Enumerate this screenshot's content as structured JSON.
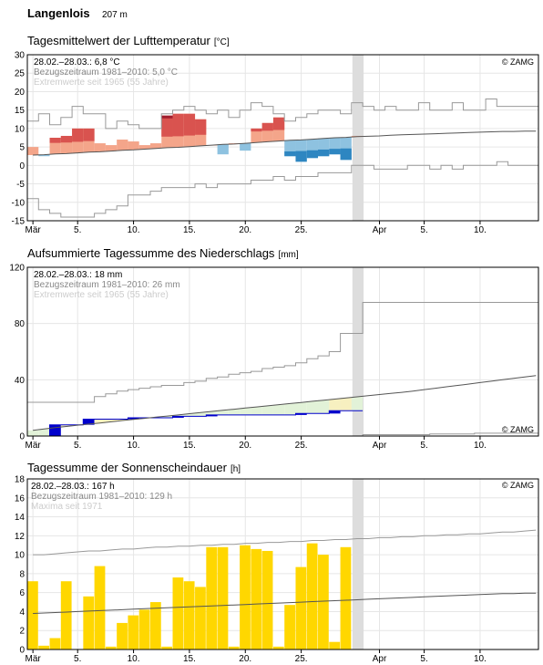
{
  "header": {
    "station": "Langenlois",
    "altitude": "207 m"
  },
  "colors": {
    "above_mean_light": "#F4A58A",
    "above_mean_dark": "#D9534F",
    "record_high": "#A01E2E",
    "below_mean_light": "#8EC2E0",
    "below_mean_dark": "#2E86C1",
    "precip_accum": "#0000CC",
    "precip_deficit": "#E2F2D8",
    "precip_surplus": "#F7F0C0",
    "sunshine": "#FFD700",
    "today_marker": "#DDDDDD",
    "grid": "#E6E6E6",
    "normal_line": "#555555",
    "extreme_line": "#999999"
  },
  "x_axis": {
    "day_ticks": [
      "Mär",
      "5.",
      "10.",
      "15.",
      "20.",
      "25.",
      "Apr",
      "5.",
      "10."
    ]
  },
  "chart_data": [
    {
      "type": "bar",
      "title": "Tagesmittelwert der Lufttemperatur",
      "unit": "[°C]",
      "copyright": "© ZAMG",
      "info": [
        "28.02.–28.03.: 6,8 °C",
        "Bezugszeitraum 1981–2010: 5,0 °C",
        "Extremwerte seit 1965 (55 Jahre)"
      ],
      "ylim": [
        -15,
        30
      ],
      "yticks": [
        "30",
        "25",
        "20",
        "15",
        "10",
        "5",
        "0",
        "-5",
        "-10",
        "-15"
      ],
      "ytick_values": [
        30,
        25,
        20,
        15,
        10,
        5,
        0,
        -5,
        -10,
        -15
      ],
      "values": [
        5.0,
        2.5,
        7.5,
        8.0,
        10.0,
        10.0,
        6.0,
        5.5,
        7.0,
        6.5,
        5.5,
        6.0,
        13.5,
        14.0,
        14.0,
        12.5,
        5.5,
        3.0,
        6.0,
        4.0,
        10.0,
        11.5,
        13.0,
        2.5,
        1.0,
        2.0,
        2.5,
        3.0,
        1.5,
        8.0
      ],
      "normal": [
        2.8,
        2.9,
        3.1,
        3.2,
        3.4,
        3.6,
        3.7,
        3.9,
        4.1,
        4.2,
        4.4,
        4.6,
        4.8,
        4.9,
        5.1,
        5.3,
        5.5,
        5.7,
        5.8,
        6.0,
        6.2,
        6.4,
        6.6,
        6.8,
        6.9,
        7.1,
        7.3,
        7.5,
        7.6,
        7.8,
        7.9,
        8.0,
        8.2,
        8.3,
        8.4,
        8.5,
        8.6,
        8.7,
        8.8,
        8.9,
        9.0,
        9.1,
        9.2,
        9.2,
        9.3,
        9.3
      ],
      "record_max": [
        12,
        14,
        11,
        13,
        16,
        14,
        14,
        10,
        12,
        11,
        10,
        10,
        14,
        15,
        16,
        15,
        14,
        15,
        13,
        15,
        17,
        16,
        14,
        12,
        13,
        14,
        15,
        15,
        14,
        17,
        16,
        15,
        16,
        15,
        15,
        17,
        15,
        15,
        17,
        15,
        15,
        18,
        16,
        16,
        16,
        16
      ],
      "record_min": [
        -9,
        -12,
        -13,
        -14,
        -14,
        -14,
        -13,
        -12,
        -11,
        -8,
        -8,
        -7,
        -6,
        -6,
        -6,
        -5,
        -6,
        -5,
        -5,
        -5,
        -4,
        -4,
        -3,
        -4,
        -3,
        -3,
        -2,
        -2,
        -2,
        0,
        0,
        -1,
        -1,
        -1,
        0,
        0,
        -1,
        0,
        -1,
        0,
        0,
        0,
        1,
        0,
        0,
        0
      ]
    },
    {
      "type": "area",
      "title": "Aufsummierte Tagessumme des Niederschlags",
      "unit": "[mm]",
      "copyright": "© ZAMG",
      "info": [
        "28.02.–28.03.: 18 mm",
        "Bezugszeitraum 1981–2010: 26 mm",
        "Extremwerte seit 1965 (55 Jahre)"
      ],
      "ylim": [
        0,
        120
      ],
      "yticks": [
        "120",
        "80",
        "40",
        "0"
      ],
      "ytick_values": [
        120,
        80,
        40,
        0
      ],
      "accumulated": [
        0,
        0,
        8,
        8,
        8,
        12,
        12,
        12,
        12,
        13,
        13,
        13,
        13,
        14,
        14,
        14,
        15,
        15,
        15,
        15,
        15,
        15,
        15,
        15,
        16,
        16,
        16,
        18,
        18,
        18
      ],
      "normal": [
        4,
        5,
        6,
        6.8,
        7.7,
        8.5,
        9.3,
        10.1,
        11,
        11.8,
        12.6,
        13.4,
        14.2,
        15,
        15.9,
        16.7,
        17.5,
        18.3,
        19.1,
        19.9,
        20.7,
        21.5,
        22.3,
        23.1,
        23.9,
        24.7,
        25.5,
        26.3,
        27.1,
        27.9,
        28.7,
        29.5,
        30.3,
        31.1,
        32,
        33,
        34,
        35,
        36,
        37,
        38,
        39,
        40,
        41,
        42,
        43
      ],
      "record_max": [
        24,
        24,
        24,
        24,
        24,
        24,
        28,
        30,
        32,
        33,
        34,
        35,
        36,
        36,
        38,
        39,
        41,
        42,
        44,
        45,
        46,
        48,
        49,
        50,
        52,
        55,
        57,
        60,
        73,
        73,
        95,
        95,
        95,
        95,
        95,
        95,
        95,
        95,
        95,
        95,
        95,
        95,
        95,
        95,
        95,
        95
      ],
      "record_min": [
        0,
        0,
        0,
        0,
        0,
        0,
        0,
        0,
        0,
        0,
        0,
        0,
        0,
        0,
        0,
        0,
        0,
        0,
        0,
        0,
        0,
        0,
        0,
        0,
        0,
        0,
        0,
        0,
        0,
        0,
        1,
        1,
        1,
        1,
        1,
        1,
        1.5,
        1.5,
        1.5,
        1.5,
        2,
        2,
        2,
        2,
        2,
        2
      ]
    },
    {
      "type": "bar",
      "title": "Tagessumme der Sonnenscheindauer",
      "unit": "[h]",
      "copyright": "© ZAMG",
      "info": [
        "28.02.–28.03.: 167 h",
        "Bezugszeitraum 1981–2010: 129 h",
        "Maxima seit 1971"
      ],
      "ylim": [
        0,
        18
      ],
      "yticks": [
        "18",
        "16",
        "14",
        "12",
        "10",
        "8",
        "6",
        "4",
        "2",
        "0"
      ],
      "ytick_values": [
        18,
        16,
        14,
        12,
        10,
        8,
        6,
        4,
        2,
        0
      ],
      "values": [
        7.2,
        0.4,
        1.2,
        7.2,
        0,
        5.6,
        8.8,
        0.3,
        2.8,
        3.6,
        4.2,
        5.0,
        0.3,
        7.6,
        7.2,
        6.6,
        10.8,
        10.8,
        0.3,
        11.0,
        10.6,
        10.4,
        0.3,
        4.7,
        8.7,
        11.2,
        10.0,
        0.8,
        10.8,
        0
      ],
      "normal": [
        3.8,
        3.85,
        3.9,
        3.95,
        4.0,
        4.05,
        4.1,
        4.15,
        4.2,
        4.25,
        4.3,
        4.35,
        4.4,
        4.45,
        4.5,
        4.55,
        4.6,
        4.65,
        4.7,
        4.75,
        4.8,
        4.85,
        4.9,
        4.95,
        5.0,
        5.05,
        5.1,
        5.15,
        5.2,
        5.25,
        5.3,
        5.35,
        5.4,
        5.45,
        5.5,
        5.55,
        5.6,
        5.65,
        5.7,
        5.75,
        5.8,
        5.85,
        5.9,
        5.9,
        5.95,
        5.95
      ],
      "record_max": [
        10.0,
        10.0,
        10.1,
        10.2,
        10.3,
        10.4,
        10.4,
        10.5,
        10.6,
        10.6,
        10.7,
        10.8,
        10.8,
        10.9,
        10.9,
        11.0,
        11.0,
        11.1,
        11.1,
        11.2,
        11.2,
        11.3,
        11.3,
        11.4,
        11.4,
        11.5,
        11.5,
        11.6,
        11.6,
        11.7,
        11.7,
        11.8,
        11.8,
        11.9,
        11.9,
        12.0,
        12.0,
        12.1,
        12.1,
        12.2,
        12.2,
        12.3,
        12.4,
        12.4,
        12.5,
        12.6
      ]
    }
  ]
}
